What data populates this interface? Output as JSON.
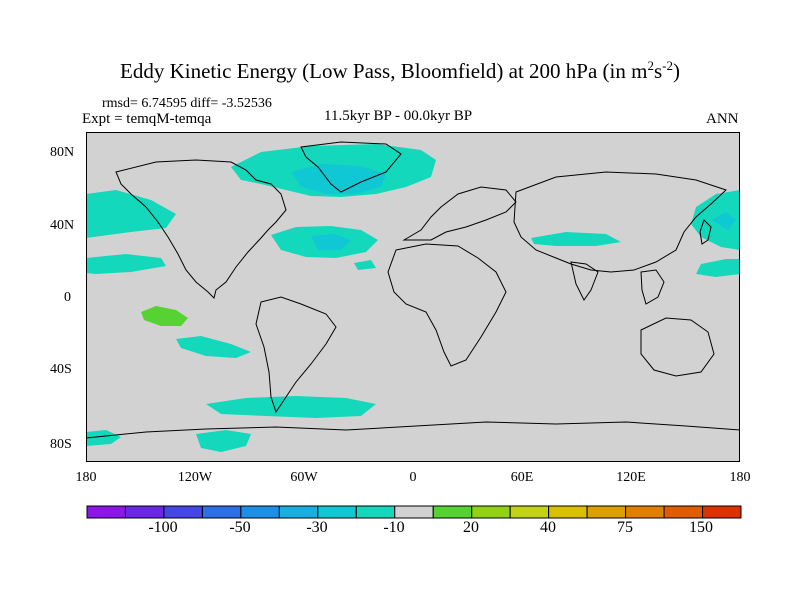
{
  "title": {
    "text": "Eddy Kinetic Energy (Low Pass, Bloomfield) at 200 hPa (in m",
    "sup1": "2",
    "mid": "s",
    "sup2": "-2",
    "end": ")"
  },
  "stats": "rmsd= 6.74595 diff= -3.52536",
  "experiment": "Expt = temqM-temqa",
  "period": "11.5kyr BP - 00.0kyr BP",
  "season": "ANN",
  "y_ticks": [
    "80N",
    "40N",
    "0",
    "40S",
    "80S"
  ],
  "x_ticks": [
    "180",
    "120W",
    "60W",
    "0",
    "60E",
    "120E",
    "180"
  ],
  "colorbar": {
    "colors": [
      "#8c16e8",
      "#6a28e6",
      "#4446e6",
      "#2e6ee6",
      "#1d8fe6",
      "#18afe0",
      "#10c8d4",
      "#14d8bc",
      "#d2d2d2",
      "#56d232",
      "#92d214",
      "#c2d214",
      "#d8c000",
      "#dca000",
      "#e08000",
      "#e05c00",
      "#dc3200"
    ],
    "labels": [
      "-100",
      "-50",
      "-30",
      "-10",
      "20",
      "40",
      "75",
      "150"
    ]
  },
  "colors": {
    "land_ocean": "#d2d2d2",
    "teal": "#14d8bc",
    "cyan": "#10c8d4",
    "green": "#56d232",
    "coast": "#000000"
  }
}
